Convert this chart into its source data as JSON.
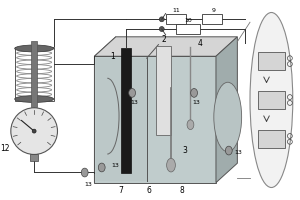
{
  "white": "#ffffff",
  "light_gray": "#e8e8e8",
  "mid_gray": "#c0c0c0",
  "dark_gray": "#555555",
  "black": "#111111",
  "wire_color": "#333333",
  "box_front_fill": "#c8cece",
  "box_left_fill": "#b0b8b8",
  "box_top_fill": "#d8d8d8",
  "box_right_fill": "#a0a8a8",
  "inner_chamber_fill": "#b8c4c4",
  "ellipse_fill": "#c0cccc",
  "coil_color": "#888888",
  "label_fontsize": 5.5,
  "small_label_fontsize": 4.5
}
